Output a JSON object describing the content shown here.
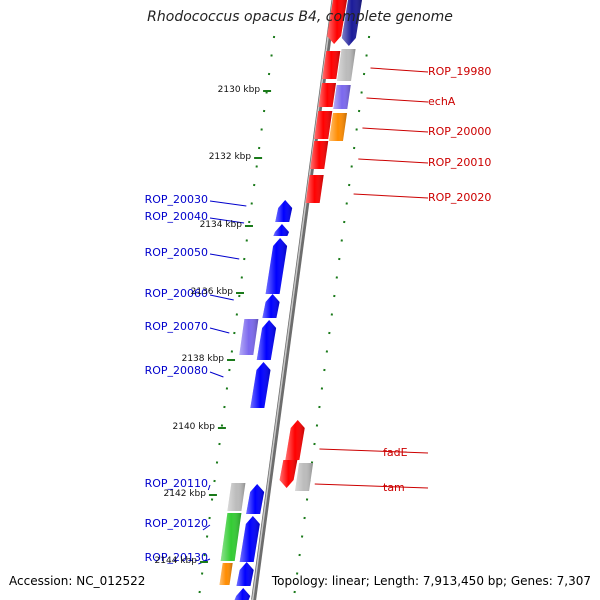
{
  "title": "Rhodococcus opacus B4, complete genome",
  "footer": {
    "accession": "Accession: NC_012522",
    "summary": "Topology: linear; Length: 7,913,450 bp; Genes: 7,307"
  },
  "colors": {
    "backbone": "#888888",
    "tick": "#1a7a1a",
    "red": "#ff0000",
    "blue": "#0000ff",
    "navy": "#1a1a99",
    "gray": "#bbbbbb",
    "purple": "#7b68ee",
    "orange": "#ff8c00",
    "green": "#33cc33",
    "right_label": "#cc0000",
    "left_label": "#0000cc",
    "scale_label": "#111111"
  },
  "scale_labels": [
    "2130 kbp",
    "2132 kbp",
    "2134 kbp",
    "2136 kbp",
    "2138 kbp",
    "2140 kbp",
    "2142 kbp",
    "2144 kbp"
  ],
  "right_genes": [
    "ROP_19980",
    "echA",
    "ROP_20000",
    "ROP_20010",
    "ROP_20020",
    "fadE",
    "tam"
  ],
  "left_genes": [
    "ROP_20030",
    "ROP_20040",
    "ROP_20050",
    "ROP_20060",
    "ROP_20070",
    "ROP_20080",
    "ROP_20110",
    "ROP_20120",
    "ROP_20130"
  ]
}
